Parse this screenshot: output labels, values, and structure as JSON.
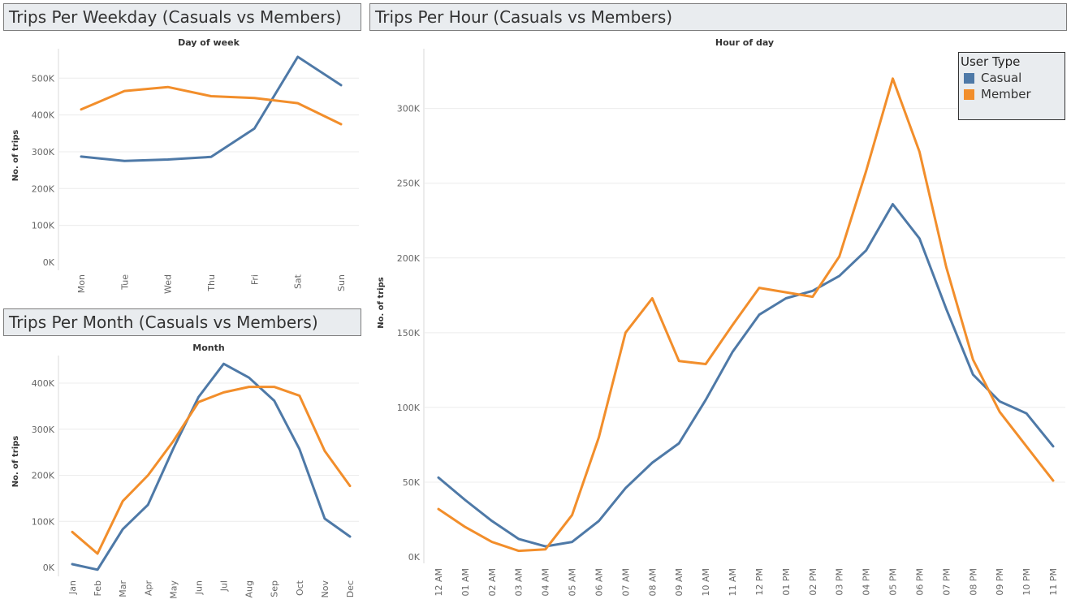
{
  "panels": {
    "weekday_title": "Trips Per Weekday (Casuals vs Members)",
    "hour_title": "Trips Per Hour (Casuals vs Members)",
    "month_title": "Trips Per Month (Casuals vs Members)"
  },
  "legend": {
    "title": "User Type",
    "items": [
      {
        "label": "Casual",
        "color": "#4e79a7"
      },
      {
        "label": "Member",
        "color": "#f28e2b"
      }
    ]
  },
  "chart_data": [
    {
      "type": "line",
      "id": "weekday",
      "xlabel": "Day of week",
      "ylabel": "No. of trips",
      "categories": [
        "Mon",
        "Tue",
        "Wed",
        "Thu",
        "Fri",
        "Sat",
        "Sun"
      ],
      "ylim": [
        0,
        580000
      ],
      "yticks": [
        0,
        100000,
        200000,
        300000,
        400000,
        500000
      ],
      "ytick_labels": [
        "0K",
        "100K",
        "200K",
        "300K",
        "400K",
        "500K"
      ],
      "series": [
        {
          "name": "Casual",
          "color": "#4e79a7",
          "values": [
            287000,
            275000,
            279000,
            286000,
            363000,
            558000,
            481000
          ]
        },
        {
          "name": "Member",
          "color": "#f28e2b",
          "values": [
            415000,
            465000,
            476000,
            451000,
            446000,
            432000,
            375000
          ]
        }
      ]
    },
    {
      "type": "line",
      "id": "month",
      "xlabel": "Month",
      "ylabel": "No. of trips",
      "categories": [
        "Jan",
        "Feb",
        "Mar",
        "Apr",
        "May",
        "Jun",
        "Jul",
        "Aug",
        "Sep",
        "Oct",
        "Nov",
        "Dec"
      ],
      "ylim": [
        0,
        460000
      ],
      "yticks": [
        0,
        100000,
        200000,
        300000,
        400000
      ],
      "ytick_labels": [
        "0K",
        "100K",
        "200K",
        "300K",
        "400K"
      ],
      "series": [
        {
          "name": "Casual",
          "color": "#4e79a7",
          "values": [
            7000,
            -5000,
            83000,
            136000,
            258000,
            370000,
            442000,
            412000,
            362000,
            257000,
            106000,
            67000
          ]
        },
        {
          "name": "Member",
          "color": "#f28e2b",
          "values": [
            77000,
            30000,
            144000,
            200000,
            274000,
            359000,
            380000,
            392000,
            392000,
            373000,
            253000,
            177000
          ]
        }
      ]
    },
    {
      "type": "line",
      "id": "hour",
      "xlabel": "Hour of day",
      "ylabel": "No. of trips",
      "categories": [
        "12 AM",
        "01 AM",
        "02 AM",
        "03 AM",
        "04 AM",
        "05 AM",
        "06 AM",
        "07 AM",
        "08 AM",
        "09 AM",
        "10 AM",
        "11 AM",
        "12 PM",
        "01 PM",
        "02 PM",
        "03 PM",
        "04 PM",
        "05 PM",
        "06 PM",
        "07 PM",
        "08 PM",
        "09 PM",
        "10 PM",
        "11 PM"
      ],
      "ylim": [
        0,
        340000
      ],
      "yticks": [
        0,
        50000,
        100000,
        150000,
        200000,
        250000,
        300000
      ],
      "ytick_labels": [
        "0K",
        "50K",
        "100K",
        "150K",
        "200K",
        "250K",
        "300K"
      ],
      "series": [
        {
          "name": "Casual",
          "color": "#4e79a7",
          "values": [
            53000,
            38000,
            24000,
            12000,
            7000,
            10000,
            24000,
            46000,
            63000,
            76000,
            105000,
            137000,
            162000,
            173000,
            178000,
            188000,
            205000,
            236000,
            213000,
            166000,
            122000,
            104000,
            96000,
            74000
          ]
        },
        {
          "name": "Member",
          "color": "#f28e2b",
          "values": [
            32000,
            20000,
            10000,
            4000,
            5000,
            28000,
            80000,
            150000,
            173000,
            131000,
            129000,
            155000,
            180000,
            177000,
            174000,
            201000,
            258000,
            320000,
            271000,
            194000,
            132000,
            97000,
            74000,
            51000
          ]
        }
      ]
    }
  ]
}
